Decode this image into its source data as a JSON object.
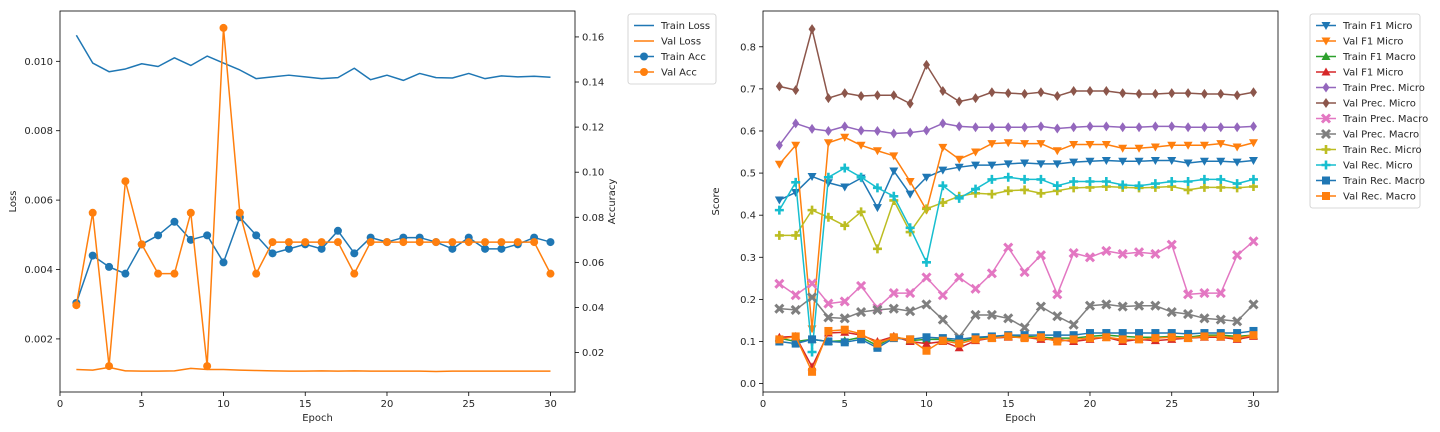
{
  "chart_data": [
    {
      "type": "line",
      "xlabel": "Epoch",
      "ylabel": "Loss",
      "y2label": "Accuracy",
      "xlim": [
        0,
        31.5
      ],
      "ylim": [
        0.00047,
        0.01145
      ],
      "y2lim": [
        0.0025,
        0.1715
      ],
      "x_ticks": [
        0,
        5,
        10,
        15,
        20,
        25,
        30
      ],
      "y_ticks": [
        0.002,
        0.004,
        0.006,
        0.008,
        0.01
      ],
      "y_tick_labels": [
        "0.002",
        "0.004",
        "0.006",
        "0.008",
        "0.010"
      ],
      "y2_ticks": [
        0.02,
        0.04,
        0.06,
        0.08,
        0.1,
        0.12,
        0.14,
        0.16
      ],
      "y2_tick_labels": [
        "0.02",
        "0.04",
        "0.06",
        "0.08",
        "0.10",
        "0.12",
        "0.14",
        "0.16"
      ],
      "legend": "outside-upper-right",
      "x": [
        1,
        2,
        3,
        4,
        5,
        6,
        7,
        8,
        9,
        10,
        11,
        12,
        13,
        14,
        15,
        16,
        17,
        18,
        19,
        20,
        21,
        22,
        23,
        24,
        25,
        26,
        27,
        28,
        29,
        30
      ],
      "series": [
        {
          "name": "Train Loss",
          "axis": "left",
          "color": "#1f77b4",
          "marker": "none",
          "values": [
            0.01075,
            0.00995,
            0.0097,
            0.00978,
            0.00993,
            0.00985,
            0.0101,
            0.00988,
            0.01015,
            0.00995,
            0.00975,
            0.0095,
            0.00955,
            0.0096,
            0.00955,
            0.0095,
            0.00953,
            0.0098,
            0.00947,
            0.0096,
            0.00945,
            0.00965,
            0.00953,
            0.00952,
            0.00965,
            0.0095,
            0.00958,
            0.00955,
            0.00957,
            0.00954
          ]
        },
        {
          "name": "Val Loss",
          "axis": "left",
          "color": "#ff7f0e",
          "marker": "none",
          "values": [
            0.00112,
            0.0011,
            0.00118,
            0.00108,
            0.00107,
            0.00107,
            0.00108,
            0.00115,
            0.00112,
            0.00112,
            0.0011,
            0.00109,
            0.00108,
            0.00107,
            0.00107,
            0.00108,
            0.00107,
            0.00108,
            0.00107,
            0.00107,
            0.00107,
            0.00107,
            0.00106,
            0.00107,
            0.00107,
            0.00107,
            0.00107,
            0.00107,
            0.00107,
            0.00107
          ]
        },
        {
          "name": "Train Acc",
          "axis": "right",
          "color": "#1f77b4",
          "marker": "circle",
          "values": [
            0.042,
            0.063,
            0.058,
            0.055,
            0.068,
            0.072,
            0.078,
            0.07,
            0.072,
            0.06,
            0.08,
            0.072,
            0.064,
            0.066,
            0.068,
            0.066,
            0.074,
            0.064,
            0.071,
            0.069,
            0.071,
            0.071,
            0.069,
            0.066,
            0.071,
            0.066,
            0.066,
            0.068,
            0.071,
            0.069
          ]
        },
        {
          "name": "Val Acc",
          "axis": "right",
          "color": "#ff7f0e",
          "marker": "circle",
          "values": [
            0.041,
            0.082,
            0.014,
            0.096,
            0.068,
            0.055,
            0.055,
            0.082,
            0.014,
            0.164,
            0.082,
            0.055,
            0.069,
            0.069,
            0.069,
            0.069,
            0.069,
            0.055,
            0.069,
            0.069,
            0.069,
            0.069,
            0.069,
            0.069,
            0.069,
            0.069,
            0.069,
            0.069,
            0.069,
            0.055
          ]
        }
      ]
    },
    {
      "type": "line",
      "xlabel": "Epoch",
      "ylabel": "Score",
      "xlim": [
        0,
        31.5
      ],
      "ylim": [
        -0.02,
        0.885
      ],
      "x_ticks": [
        0,
        5,
        10,
        15,
        20,
        25,
        30
      ],
      "y_ticks": [
        0.0,
        0.1,
        0.2,
        0.3,
        0.4,
        0.5,
        0.6,
        0.7,
        0.8
      ],
      "y_tick_labels": [
        "0.0",
        "0.1",
        "0.2",
        "0.3",
        "0.4",
        "0.5",
        "0.6",
        "0.7",
        "0.8"
      ],
      "legend": "outside-upper-right",
      "x": [
        1,
        2,
        3,
        4,
        5,
        6,
        7,
        8,
        9,
        10,
        11,
        12,
        13,
        14,
        15,
        16,
        17,
        18,
        19,
        20,
        21,
        22,
        23,
        24,
        25,
        26,
        27,
        28,
        29,
        30
      ],
      "series": [
        {
          "name": "Train F1 Micro",
          "color": "#1f77b4",
          "marker": "triangle-down",
          "values": [
            0.436,
            0.454,
            0.492,
            0.477,
            0.467,
            0.488,
            0.418,
            0.505,
            0.45,
            0.49,
            0.507,
            0.514,
            0.519,
            0.519,
            0.522,
            0.524,
            0.522,
            0.522,
            0.526,
            0.528,
            0.53,
            0.528,
            0.528,
            0.53,
            0.53,
            0.524,
            0.528,
            0.528,
            0.526,
            0.53
          ]
        },
        {
          "name": "Val F1 Micro",
          "color": "#ff7f0e",
          "marker": "triangle-down",
          "values": [
            0.521,
            0.566,
            0.13,
            0.572,
            0.585,
            0.566,
            0.553,
            0.541,
            0.48,
            0.412,
            0.561,
            0.533,
            0.55,
            0.57,
            0.572,
            0.57,
            0.57,
            0.553,
            0.568,
            0.568,
            0.568,
            0.559,
            0.559,
            0.562,
            0.566,
            0.566,
            0.566,
            0.57,
            0.562,
            0.572
          ]
        },
        {
          "name": "Train F1 Macro",
          "color": "#2ca02c",
          "marker": "triangle-up",
          "values": [
            0.108,
            0.1,
            0.105,
            0.1,
            0.102,
            0.11,
            0.09,
            0.112,
            0.102,
            0.105,
            0.105,
            0.1,
            0.108,
            0.11,
            0.112,
            0.112,
            0.11,
            0.108,
            0.108,
            0.112,
            0.115,
            0.112,
            0.11,
            0.11,
            0.112,
            0.11,
            0.115,
            0.115,
            0.112,
            0.115
          ]
        },
        {
          "name": "Val F1 Micro",
          "color": "#d62728",
          "marker": "triangle-up",
          "values": [
            0.11,
            0.112,
            0.04,
            0.12,
            0.122,
            0.115,
            0.1,
            0.112,
            0.1,
            0.095,
            0.1,
            0.085,
            0.102,
            0.108,
            0.11,
            0.11,
            0.105,
            0.105,
            0.1,
            0.105,
            0.11,
            0.1,
            0.105,
            0.102,
            0.105,
            0.108,
            0.11,
            0.11,
            0.105,
            0.112
          ]
        },
        {
          "name": "Train Prec. Micro",
          "color": "#9467bd",
          "marker": "diamond",
          "values": [
            0.566,
            0.618,
            0.605,
            0.6,
            0.611,
            0.601,
            0.6,
            0.594,
            0.596,
            0.601,
            0.618,
            0.611,
            0.609,
            0.609,
            0.609,
            0.609,
            0.611,
            0.606,
            0.609,
            0.611,
            0.611,
            0.609,
            0.609,
            0.611,
            0.611,
            0.609,
            0.609,
            0.609,
            0.609,
            0.611
          ]
        },
        {
          "name": "Val Prec. Micro",
          "color": "#8c564b",
          "marker": "diamond",
          "values": [
            0.706,
            0.697,
            0.842,
            0.678,
            0.69,
            0.683,
            0.685,
            0.685,
            0.665,
            0.757,
            0.695,
            0.67,
            0.678,
            0.692,
            0.69,
            0.688,
            0.692,
            0.683,
            0.695,
            0.695,
            0.695,
            0.69,
            0.688,
            0.688,
            0.69,
            0.69,
            0.688,
            0.688,
            0.685,
            0.692
          ]
        },
        {
          "name": "Train Prec. Macro",
          "color": "#e377c2",
          "marker": "x",
          "values": [
            0.237,
            0.21,
            0.238,
            0.19,
            0.195,
            0.232,
            0.18,
            0.215,
            0.215,
            0.252,
            0.21,
            0.252,
            0.225,
            0.262,
            0.323,
            0.265,
            0.305,
            0.212,
            0.31,
            0.3,
            0.315,
            0.308,
            0.312,
            0.308,
            0.33,
            0.212,
            0.215,
            0.215,
            0.305,
            0.338
          ]
        },
        {
          "name": "Val Prec. Macro",
          "color": "#7f7f7f",
          "marker": "x",
          "values": [
            0.178,
            0.175,
            0.205,
            0.157,
            0.155,
            0.17,
            0.175,
            0.178,
            0.172,
            0.188,
            0.152,
            0.11,
            0.163,
            0.163,
            0.155,
            0.133,
            0.183,
            0.16,
            0.14,
            0.185,
            0.188,
            0.183,
            0.185,
            0.185,
            0.17,
            0.165,
            0.155,
            0.152,
            0.148,
            0.188
          ]
        },
        {
          "name": "Train Rec. Micro",
          "color": "#bcbd22",
          "marker": "plus",
          "values": [
            0.352,
            0.352,
            0.412,
            0.395,
            0.375,
            0.408,
            0.32,
            0.435,
            0.36,
            0.415,
            0.43,
            0.445,
            0.452,
            0.45,
            0.458,
            0.46,
            0.452,
            0.458,
            0.465,
            0.466,
            0.468,
            0.466,
            0.465,
            0.466,
            0.468,
            0.46,
            0.466,
            0.466,
            0.465,
            0.468
          ]
        },
        {
          "name": "Val Rec. Micro",
          "color": "#17becf",
          "marker": "plus",
          "values": [
            0.412,
            0.478,
            0.075,
            0.49,
            0.512,
            0.49,
            0.465,
            0.445,
            0.37,
            0.288,
            0.47,
            0.44,
            0.462,
            0.485,
            0.49,
            0.485,
            0.485,
            0.47,
            0.48,
            0.48,
            0.48,
            0.472,
            0.47,
            0.475,
            0.48,
            0.48,
            0.485,
            0.485,
            0.475,
            0.485
          ]
        },
        {
          "name": "Train Rec. Macro",
          "color": "#1f77b4",
          "marker": "square",
          "values": [
            0.1,
            0.095,
            0.105,
            0.1,
            0.098,
            0.105,
            0.085,
            0.108,
            0.105,
            0.11,
            0.108,
            0.105,
            0.11,
            0.112,
            0.115,
            0.115,
            0.115,
            0.115,
            0.115,
            0.12,
            0.12,
            0.12,
            0.12,
            0.12,
            0.12,
            0.118,
            0.12,
            0.12,
            0.12,
            0.125
          ]
        },
        {
          "name": "Val Rec. Macro",
          "color": "#ff7f0e",
          "marker": "square",
          "values": [
            0.105,
            0.112,
            0.028,
            0.125,
            0.128,
            0.118,
            0.095,
            0.11,
            0.105,
            0.078,
            0.102,
            0.095,
            0.105,
            0.108,
            0.112,
            0.108,
            0.11,
            0.1,
            0.105,
            0.108,
            0.11,
            0.105,
            0.105,
            0.108,
            0.11,
            0.108,
            0.112,
            0.112,
            0.108,
            0.115
          ]
        }
      ]
    }
  ]
}
